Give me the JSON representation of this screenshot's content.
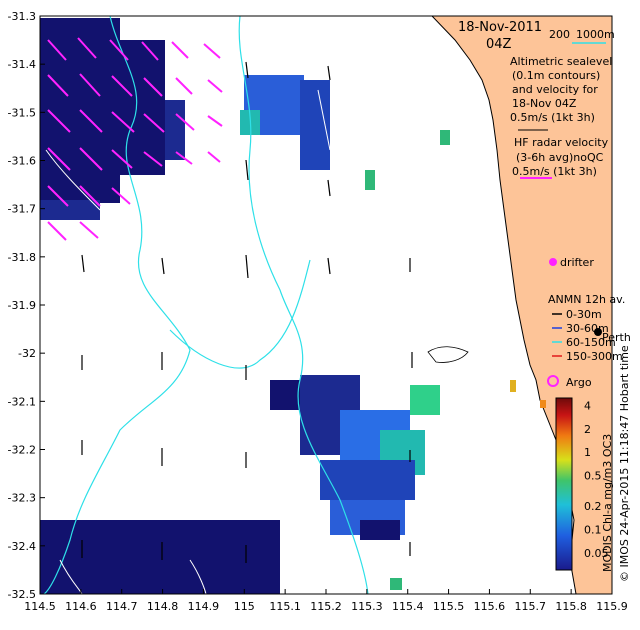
{
  "title": {
    "date": "18-Nov-2011",
    "time": "04Z"
  },
  "axes": {
    "x_ticks": [
      "114.5",
      "114.6",
      "114.7",
      "114.8",
      "114.9",
      "115",
      "115.1",
      "115.2",
      "115.3",
      "115.4",
      "115.5",
      "115.6",
      "115.7",
      "115.8",
      "115.9"
    ],
    "y_ticks": [
      "-31.3",
      "-31.4",
      "-31.5",
      "-31.6",
      "-31.7",
      "-31.8",
      "-31.9",
      "-32",
      "-32.1",
      "-32.2",
      "-32.3",
      "-32.4",
      "-32.5"
    ],
    "xlim": [
      114.5,
      115.9
    ],
    "ylim": [
      -32.5,
      -31.3
    ]
  },
  "depth_legend": {
    "d200": "200",
    "d1000": "1000m"
  },
  "legend": {
    "altimetric": [
      "Altimetric sealevel",
      "(0.1m contours)",
      "and velocity for",
      "18-Nov 04Z",
      "0.5m/s (1kt 3h)"
    ],
    "hf_radar": [
      "HF radar velocity",
      "(3-6h avg)noQC",
      "0.5m/s (1kt 3h)"
    ],
    "drifter": "drifter",
    "anmn_title": "ANMN 12h av.",
    "anmn_items": [
      "0-30m",
      "30-60m",
      "60-150m",
      "150-300m"
    ],
    "argo": "Argo",
    "perth": "Perth"
  },
  "colorbar": {
    "ticks": [
      "4",
      "2",
      "1",
      "0.5",
      "0.2",
      "0.1",
      "0.05"
    ],
    "label": "MODIS Chl-a mg/m3 OC3",
    "credit": "© IMOS 24-Apr-2015 11:18:47 Hobart time"
  },
  "colors": {
    "land": "#fdc498",
    "bathymetry": "#2ee0e8",
    "hf_arrow": "#ff22ff",
    "chl_high": "#12126e",
    "chl_mid": "#2a6ee6",
    "chl_low": "#22b9b0"
  }
}
